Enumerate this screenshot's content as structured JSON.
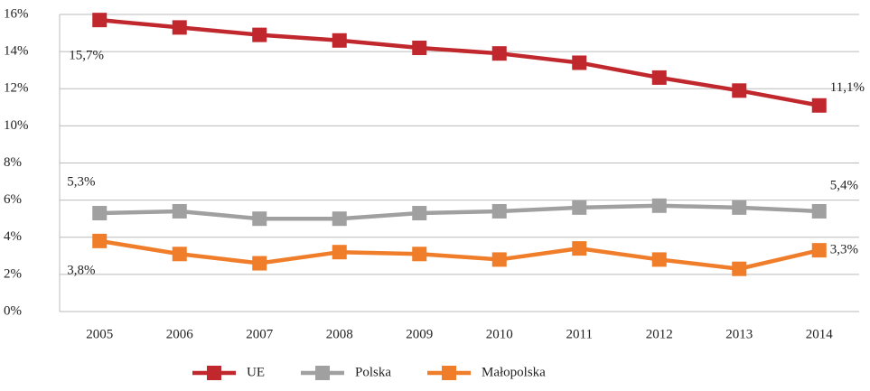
{
  "chart_data": {
    "type": "line",
    "categories": [
      "2005",
      "2006",
      "2007",
      "2008",
      "2009",
      "2010",
      "2011",
      "2012",
      "2013",
      "2014"
    ],
    "series": [
      {
        "name": "UE",
        "color": "#c0282d",
        "values": [
          15.7,
          15.3,
          14.9,
          14.6,
          14.2,
          13.9,
          13.4,
          12.6,
          11.9,
          11.1
        ],
        "value_labels": [
          "15,7%",
          null,
          null,
          null,
          null,
          null,
          null,
          null,
          null,
          "11,1%"
        ]
      },
      {
        "name": "Polska",
        "color": "#a0a0a0",
        "values": [
          5.3,
          5.4,
          5.0,
          5.0,
          5.3,
          5.4,
          5.6,
          5.7,
          5.6,
          5.4
        ],
        "value_labels": [
          "5,3%",
          null,
          null,
          null,
          null,
          null,
          null,
          null,
          null,
          "5,4%"
        ]
      },
      {
        "name": "Małopolska",
        "color": "#f07d2a",
        "values": [
          3.8,
          3.1,
          2.6,
          3.2,
          3.1,
          2.8,
          3.4,
          2.8,
          2.3,
          3.3
        ],
        "value_labels": [
          "3,8%",
          null,
          null,
          null,
          null,
          null,
          null,
          null,
          null,
          "3,3%"
        ]
      }
    ],
    "ylim": [
      0,
      16
    ],
    "yticks": [
      {
        "value": 0,
        "label": "0%"
      },
      {
        "value": 2,
        "label": "2%"
      },
      {
        "value": 4,
        "label": "4%"
      },
      {
        "value": 6,
        "label": "6%"
      },
      {
        "value": 8,
        "label": "8%"
      },
      {
        "value": 10,
        "label": "10%"
      },
      {
        "value": 12,
        "label": "12%"
      },
      {
        "value": 14,
        "label": "14%"
      },
      {
        "value": 16,
        "label": "16%"
      }
    ],
    "grid": true,
    "legend": "bottom"
  }
}
